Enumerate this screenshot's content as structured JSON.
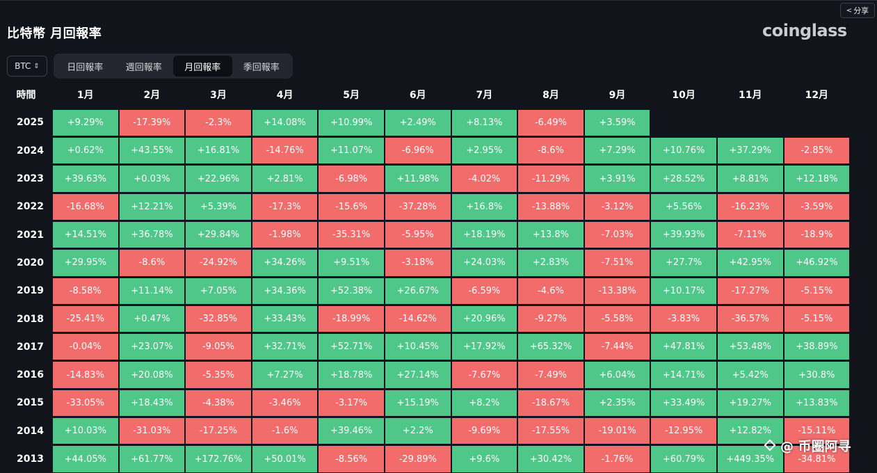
{
  "share": {
    "label": "分享"
  },
  "title": "比特幣 月回報率",
  "logo": "coinglass",
  "coin_select": {
    "value": "BTC"
  },
  "tabs": [
    {
      "label": "日回報率",
      "active": false
    },
    {
      "label": "週回報率",
      "active": false
    },
    {
      "label": "月回報率",
      "active": true
    },
    {
      "label": "季回報率",
      "active": false
    }
  ],
  "table": {
    "corner": "時間",
    "months": [
      "1月",
      "2月",
      "3月",
      "4月",
      "5月",
      "6月",
      "7月",
      "8月",
      "9月",
      "10月",
      "11月",
      "12月"
    ],
    "rows": [
      {
        "year": "2025",
        "values": [
          "+9.29%",
          "-17.39%",
          "-2.3%",
          "+14.08%",
          "+10.99%",
          "+2.49%",
          "+8.13%",
          "-6.49%",
          "+3.59%",
          "",
          "",
          ""
        ]
      },
      {
        "year": "2024",
        "values": [
          "+0.62%",
          "+43.55%",
          "+16.81%",
          "-14.76%",
          "+11.07%",
          "-6.96%",
          "+2.95%",
          "-8.6%",
          "+7.29%",
          "+10.76%",
          "+37.29%",
          "-2.85%"
        ]
      },
      {
        "year": "2023",
        "values": [
          "+39.63%",
          "+0.03%",
          "+22.96%",
          "+2.81%",
          "-6.98%",
          "+11.98%",
          "-4.02%",
          "-11.29%",
          "+3.91%",
          "+28.52%",
          "+8.81%",
          "+12.18%"
        ]
      },
      {
        "year": "2022",
        "values": [
          "-16.68%",
          "+12.21%",
          "+5.39%",
          "-17.3%",
          "-15.6%",
          "-37.28%",
          "+16.8%",
          "-13.88%",
          "-3.12%",
          "+5.56%",
          "-16.23%",
          "-3.59%"
        ]
      },
      {
        "year": "2021",
        "values": [
          "+14.51%",
          "+36.78%",
          "+29.84%",
          "-1.98%",
          "-35.31%",
          "-5.95%",
          "+18.19%",
          "+13.8%",
          "-7.03%",
          "+39.93%",
          "-7.11%",
          "-18.9%"
        ]
      },
      {
        "year": "2020",
        "values": [
          "+29.95%",
          "-8.6%",
          "-24.92%",
          "+34.26%",
          "+9.51%",
          "-3.18%",
          "+24.03%",
          "+2.83%",
          "-7.51%",
          "+27.7%",
          "+42.95%",
          "+46.92%"
        ]
      },
      {
        "year": "2019",
        "values": [
          "-8.58%",
          "+11.14%",
          "+7.05%",
          "+34.36%",
          "+52.38%",
          "+26.67%",
          "-6.59%",
          "-4.6%",
          "-13.38%",
          "+10.17%",
          "-17.27%",
          "-5.15%"
        ]
      },
      {
        "year": "2018",
        "values": [
          "-25.41%",
          "+0.47%",
          "-32.85%",
          "+33.43%",
          "-18.99%",
          "-14.62%",
          "+20.96%",
          "-9.27%",
          "-5.58%",
          "-3.83%",
          "-36.57%",
          "-5.15%"
        ]
      },
      {
        "year": "2017",
        "values": [
          "-0.04%",
          "+23.07%",
          "-9.05%",
          "+32.71%",
          "+52.71%",
          "+10.45%",
          "+17.92%",
          "+65.32%",
          "-7.44%",
          "+47.81%",
          "+53.48%",
          "+38.89%"
        ]
      },
      {
        "year": "2016",
        "values": [
          "-14.83%",
          "+20.08%",
          "-5.35%",
          "+7.27%",
          "+18.78%",
          "+27.14%",
          "-7.67%",
          "-7.49%",
          "+6.04%",
          "+14.71%",
          "+5.42%",
          "+30.8%"
        ]
      },
      {
        "year": "2015",
        "values": [
          "-33.05%",
          "+18.43%",
          "-4.38%",
          "-3.46%",
          "-3.17%",
          "+15.19%",
          "+8.2%",
          "-18.67%",
          "+2.35%",
          "+33.49%",
          "+19.27%",
          "+13.83%"
        ]
      },
      {
        "year": "2014",
        "values": [
          "+10.03%",
          "-31.03%",
          "-17.25%",
          "-1.6%",
          "+39.46%",
          "+2.2%",
          "-9.69%",
          "-17.55%",
          "-19.01%",
          "-12.95%",
          "+12.82%",
          "-15.11%"
        ]
      },
      {
        "year": "2013",
        "values": [
          "+44.05%",
          "+61.77%",
          "+172.76%",
          "+50.01%",
          "-8.56%",
          "-29.89%",
          "+9.6%",
          "+30.42%",
          "-1.76%",
          "+60.79%",
          "+449.35%",
          "-34.81%"
        ]
      }
    ]
  },
  "colors": {
    "positive": "#4ec788",
    "negative": "#f36c6c",
    "background": "#12141b"
  },
  "watermark": "@ 币圈阿寻"
}
